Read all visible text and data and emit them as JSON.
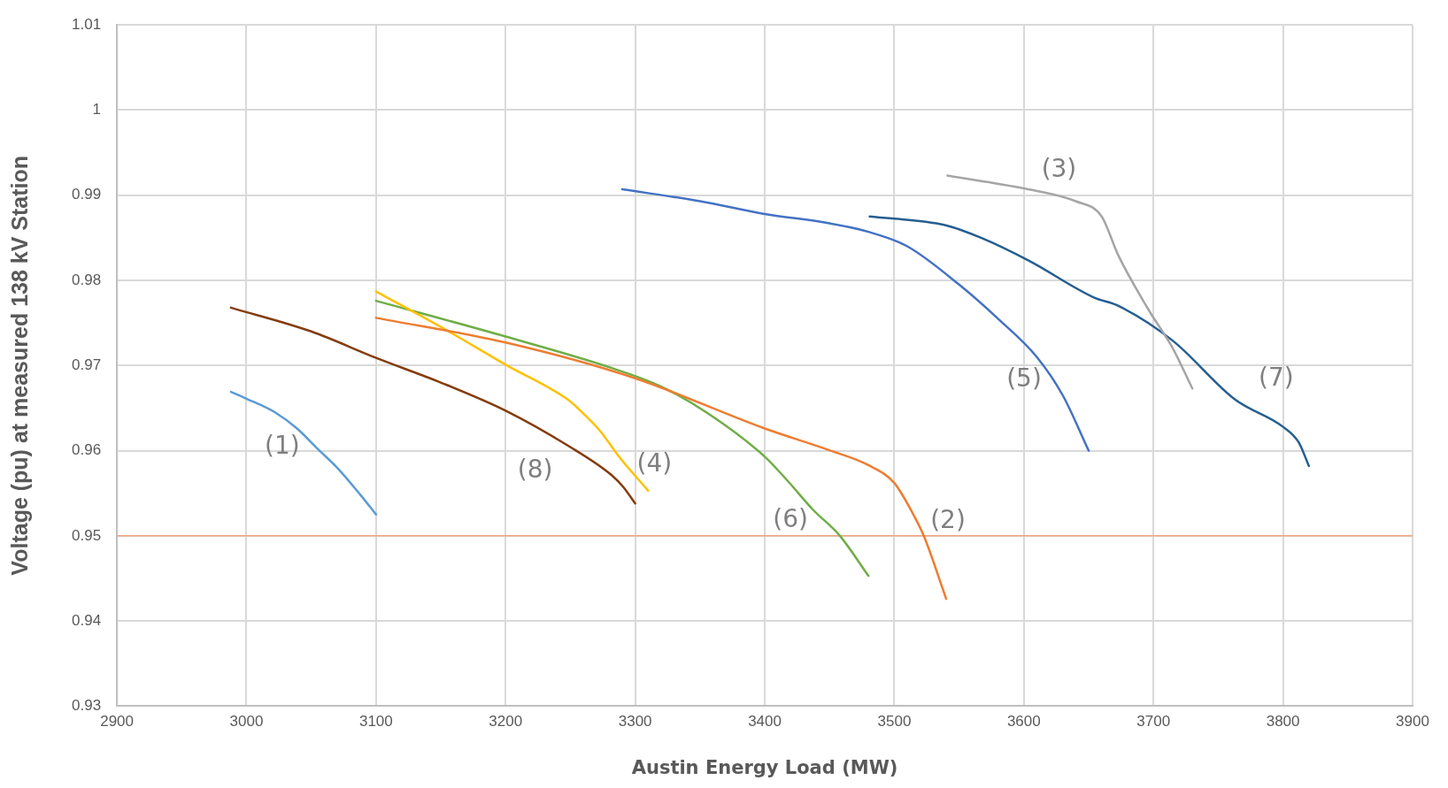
{
  "chart_data": {
    "type": "line",
    "xlabel": "Austin Energy Load (MW)",
    "ylabel": "Voltage (pu) at measured 138 kV Station",
    "xlim": [
      2900,
      3900
    ],
    "xticks": [
      2900,
      3000,
      3100,
      3200,
      3300,
      3400,
      3500,
      3600,
      3700,
      3800,
      3900
    ],
    "ylim": [
      0.93,
      1.01
    ],
    "yticks": [
      0.93,
      0.94,
      0.95,
      0.96,
      0.97,
      0.98,
      0.99,
      1,
      1.01
    ],
    "grid": true,
    "legend": false,
    "marker": "none",
    "line_style": "solid",
    "series": [
      {
        "name": "(1)",
        "color": "#5b9bd5",
        "x": [
          2988,
          3000,
          3022,
          3039,
          3055,
          3070,
          3088,
          3100
        ],
        "values": [
          0.9669,
          0.9661,
          0.9645,
          0.9626,
          0.9602,
          0.958,
          0.9548,
          0.9525
        ]
      },
      {
        "name": "(2)",
        "color": "#ed7d31",
        "x": [
          3100,
          3200,
          3300,
          3400,
          3449,
          3480,
          3500,
          3514,
          3523,
          3540
        ],
        "values": [
          0.9756,
          0.9727,
          0.9685,
          0.9626,
          0.9601,
          0.9583,
          0.9562,
          0.9527,
          0.9499,
          0.9426
        ]
      },
      {
        "name": "(3)",
        "color": "#a5a5a5",
        "x": [
          3541,
          3600,
          3640,
          3660,
          3673,
          3696,
          3715,
          3730
        ],
        "values": [
          0.9923,
          0.9908,
          0.9893,
          0.9875,
          0.9829,
          0.9766,
          0.972,
          0.9673
        ]
      },
      {
        "name": "(4)",
        "color": "#ffc000",
        "x": [
          3100,
          3155,
          3200,
          3248,
          3257,
          3273,
          3288,
          3310
        ],
        "values": [
          0.9787,
          0.9741,
          0.9701,
          0.966,
          0.9648,
          0.9623,
          0.9592,
          0.9553
        ]
      },
      {
        "name": "(5)",
        "color": "#4472c4",
        "x": [
          3290,
          3350,
          3400,
          3450,
          3480,
          3510,
          3550,
          3580,
          3610,
          3630,
          3650
        ],
        "values": [
          0.9907,
          0.9893,
          0.9878,
          0.9867,
          0.9857,
          0.984,
          0.9795,
          0.9755,
          0.971,
          0.9665,
          0.96
        ]
      },
      {
        "name": "(6)",
        "color": "#70ad47",
        "x": [
          3100,
          3200,
          3282,
          3319,
          3356,
          3400,
          3418,
          3437,
          3458,
          3480
        ],
        "values": [
          0.9776,
          0.9734,
          0.9697,
          0.9676,
          0.9644,
          0.9593,
          0.9564,
          0.9531,
          0.95,
          0.9453
        ]
      },
      {
        "name": "(7)",
        "color": "#255e91",
        "x": [
          3481,
          3539,
          3567,
          3604,
          3654,
          3673,
          3715,
          3763,
          3800,
          3812,
          3820
        ],
        "values": [
          0.9875,
          0.9865,
          0.985,
          0.9823,
          0.978,
          0.977,
          0.9729,
          0.966,
          0.9628,
          0.961,
          0.9582
        ]
      },
      {
        "name": "(8)",
        "color": "#843c0c",
        "x": [
          2988,
          3050,
          3100,
          3150,
          3200,
          3248,
          3282,
          3291,
          3300
        ],
        "values": [
          0.9768,
          0.974,
          0.9709,
          0.968,
          0.9647,
          0.9606,
          0.9571,
          0.9557,
          0.9538
        ]
      }
    ],
    "ref_lines": [
      {
        "axis": "y",
        "value": 0.95,
        "color": "#f4a582"
      }
    ]
  }
}
